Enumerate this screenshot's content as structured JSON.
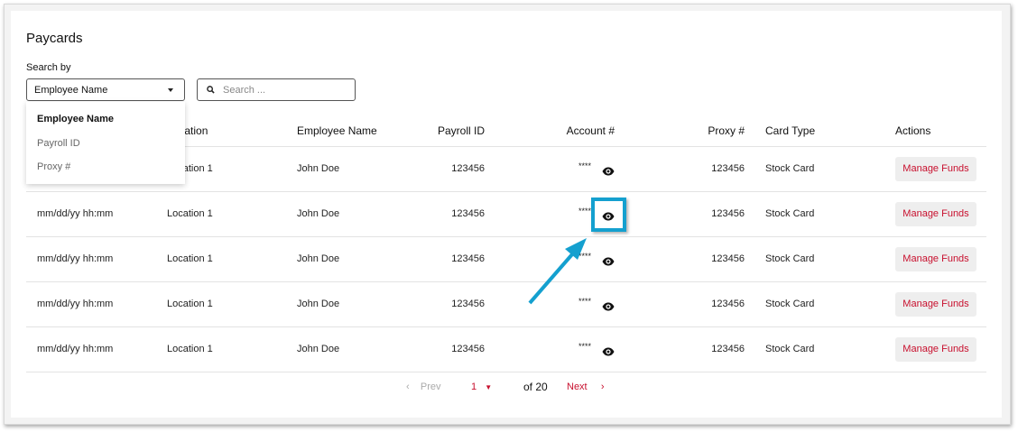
{
  "page": {
    "title": "Paycards"
  },
  "search": {
    "label": "Search by",
    "selected": "Employee Name",
    "placeholder": "Search ...",
    "options": [
      "Employee Name",
      "Payroll ID",
      "Proxy #"
    ]
  },
  "table": {
    "headers": {
      "location": "Location",
      "employee": "Employee Name",
      "payroll": "Payroll ID",
      "account": "Account #",
      "proxy": "Proxy #",
      "card_type": "Card Type",
      "actions": "Actions"
    },
    "rows": [
      {
        "date": "",
        "location": "Location 1",
        "employee": "John Doe",
        "payroll": "123456",
        "account": "****",
        "proxy": "123456",
        "card_type": "Stock Card",
        "action": "Manage Funds"
      },
      {
        "date": "mm/dd/yy hh:mm",
        "location": "Location 1",
        "employee": "John Doe",
        "payroll": "123456",
        "account": "****",
        "proxy": "123456",
        "card_type": "Stock Card",
        "action": "Manage Funds"
      },
      {
        "date": "mm/dd/yy hh:mm",
        "location": "Location 1",
        "employee": "John Doe",
        "payroll": "123456",
        "account": "****",
        "proxy": "123456",
        "card_type": "Stock Card",
        "action": "Manage Funds"
      },
      {
        "date": "mm/dd/yy hh:mm",
        "location": "Location 1",
        "employee": "John Doe",
        "payroll": "123456",
        "account": "****",
        "proxy": "123456",
        "card_type": "Stock Card",
        "action": "Manage Funds"
      },
      {
        "date": "mm/dd/yy hh:mm",
        "location": "Location 1",
        "employee": "John Doe",
        "payroll": "123456",
        "account": "****",
        "proxy": "123456",
        "card_type": "Stock Card",
        "action": "Manage Funds"
      }
    ]
  },
  "pagination": {
    "prev": "Prev",
    "page": "1",
    "of": "of 20",
    "next": "Next"
  },
  "colors": {
    "accent": "#c8102e",
    "highlight": "#14a0cf"
  }
}
